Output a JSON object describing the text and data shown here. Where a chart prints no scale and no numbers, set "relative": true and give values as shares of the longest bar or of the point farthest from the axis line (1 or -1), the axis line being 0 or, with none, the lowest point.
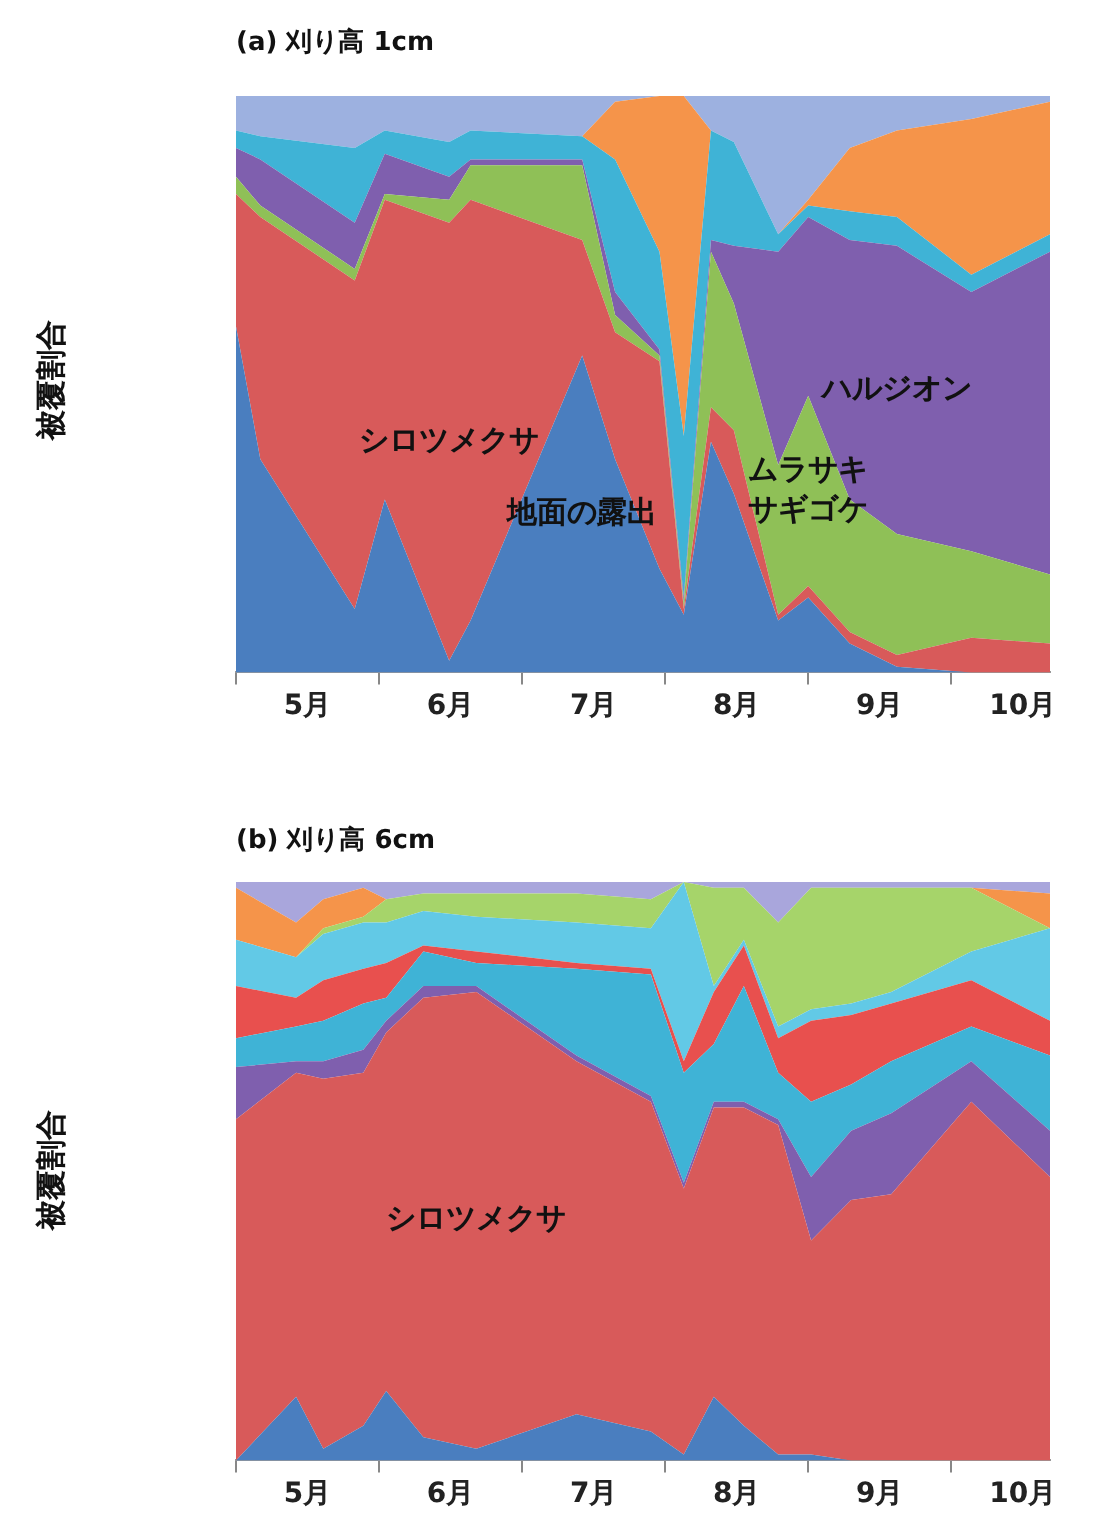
{
  "chart_data": [
    {
      "type": "area",
      "title": "(a) 刈り高 1cm",
      "ylabel": "被覆割合",
      "stacked": true,
      "relative": true,
      "x": [
        5.0,
        5.17,
        5.83,
        6.04,
        6.49,
        6.64,
        7.42,
        7.65,
        7.96,
        8.13,
        8.32,
        8.48,
        8.79,
        9.0,
        9.29,
        9.62,
        10.14,
        10.69
      ],
      "xlim": [
        5,
        10.69
      ],
      "xticks": [
        {
          "value": 5,
          "label": null
        },
        {
          "value": 5.5,
          "label": "5月"
        },
        {
          "value": 6,
          "label": null
        },
        {
          "value": 6.5,
          "label": "6月"
        },
        {
          "value": 7,
          "label": null
        },
        {
          "value": 7.5,
          "label": "7月"
        },
        {
          "value": 8,
          "label": null
        },
        {
          "value": 8.5,
          "label": "8月"
        },
        {
          "value": 9,
          "label": null
        },
        {
          "value": 9.5,
          "label": "9月"
        },
        {
          "value": 10,
          "label": null
        },
        {
          "value": 10.5,
          "label": "10月"
        }
      ],
      "series": [
        {
          "name": "地面の露出",
          "color": "#4a7ebf",
          "values": [
            0.6,
            0.37,
            0.11,
            0.3,
            0.02,
            0.09,
            0.55,
            0.37,
            0.18,
            0.1,
            0.4,
            0.31,
            0.09,
            0.13,
            0.05,
            0.01,
            0,
            0
          ]
        },
        {
          "name": "シロツメクサ",
          "color": "#d85a5a",
          "values": [
            0.23,
            0.42,
            0.57,
            0.52,
            0.76,
            0.73,
            0.2,
            0.22,
            0.36,
            0.01,
            0.06,
            0.11,
            0.01,
            0.02,
            0.02,
            0.02,
            0.06,
            0.05
          ]
        },
        {
          "name": "ムラサキサギゴケ",
          "color": "#8fc057",
          "values": [
            0.03,
            0.02,
            0.02,
            0.01,
            0.04,
            0.06,
            0.13,
            0.03,
            0.01,
            0.01,
            0.27,
            0.22,
            0.26,
            0.33,
            0.23,
            0.21,
            0.15,
            0.12
          ]
        },
        {
          "name": "ハルジオン",
          "color": "#7f5fae",
          "values": [
            0.05,
            0.08,
            0.08,
            0.07,
            0.04,
            0.01,
            0.01,
            0.04,
            0.01,
            0.01,
            0.02,
            0.1,
            0.37,
            0.31,
            0.45,
            0.5,
            0.45,
            0.56
          ]
        },
        {
          "color": "#3fb3d6",
          "values": [
            0.03,
            0.04,
            0.13,
            0.04,
            0.06,
            0.05,
            0.04,
            0.23,
            0.17,
            0.28,
            0.19,
            0.18,
            0.03,
            0.02,
            0.05,
            0.05,
            0.03,
            0.03
          ]
        },
        {
          "color": "#f5944a",
          "values": [
            0,
            0,
            0,
            0,
            0,
            0,
            0,
            0.1,
            0.27,
            0.59,
            0,
            0,
            0,
            0.01,
            0.11,
            0.15,
            0.27,
            0.23
          ]
        },
        {
          "color": "#9db1e0",
          "values": [
            0.06,
            0.07,
            0.09,
            0.06,
            0.08,
            0.06,
            0.07,
            0.01,
            0,
            0,
            0.06,
            0.08,
            0.24,
            0.18,
            0.09,
            0.06,
            0.04,
            0.01
          ]
        }
      ]
    },
    {
      "type": "area",
      "title": "(b) 刈り高 6cm",
      "ylabel": "被覆割合",
      "stacked": true,
      "relative": true,
      "x": [
        5.0,
        5.42,
        5.61,
        5.89,
        6.05,
        6.31,
        6.68,
        7.38,
        7.9,
        8.13,
        8.34,
        8.55,
        8.79,
        9.02,
        9.3,
        9.58,
        10.14,
        10.69
      ],
      "xlim": [
        5,
        10.69
      ],
      "xticks": [
        {
          "value": 5,
          "label": null
        },
        {
          "value": 5.5,
          "label": "5月"
        },
        {
          "value": 6,
          "label": null
        },
        {
          "value": 6.5,
          "label": "6月"
        },
        {
          "value": 7,
          "label": null
        },
        {
          "value": 7.5,
          "label": "7月"
        },
        {
          "value": 8,
          "label": null
        },
        {
          "value": 8.5,
          "label": "8月"
        },
        {
          "value": 9,
          "label": null
        },
        {
          "value": 9.5,
          "label": "9月"
        },
        {
          "value": 10,
          "label": null
        },
        {
          "value": 10.5,
          "label": "10月"
        }
      ],
      "series": [
        {
          "color": "#4a7ebf",
          "values": [
            0,
            0.11,
            0.02,
            0.06,
            0.12,
            0.04,
            0.02,
            0.08,
            0.05,
            0.01,
            0.11,
            0.06,
            0.01,
            0.01,
            0,
            0,
            0,
            0
          ]
        },
        {
          "name": "シロツメクサ",
          "color": "#d85a5a",
          "values": [
            0.59,
            0.56,
            0.64,
            0.61,
            0.62,
            0.76,
            0.79,
            0.61,
            0.57,
            0.46,
            0.5,
            0.55,
            0.57,
            0.37,
            0.45,
            0.46,
            0.62,
            0.49
          ]
        },
        {
          "color": "#7f5fae",
          "values": [
            0.09,
            0.02,
            0.03,
            0.04,
            0.02,
            0.02,
            0.01,
            0.01,
            0.01,
            0.01,
            0.01,
            0.01,
            0.01,
            0.11,
            0.12,
            0.14,
            0.07,
            0.08
          ]
        },
        {
          "color": "#3fb3d6",
          "values": [
            0.05,
            0.06,
            0.07,
            0.08,
            0.04,
            0.06,
            0.04,
            0.15,
            0.21,
            0.19,
            0.1,
            0.2,
            0.08,
            0.13,
            0.08,
            0.09,
            0.06,
            0.13
          ]
        },
        {
          "color": "#e8504e",
          "values": [
            0.09,
            0.05,
            0.07,
            0.06,
            0.06,
            0.01,
            0.02,
            0.01,
            0.01,
            0.02,
            0.09,
            0.07,
            0.06,
            0.14,
            0.12,
            0.1,
            0.08,
            0.06
          ]
        },
        {
          "color": "#62c9e6",
          "values": [
            0.08,
            0.07,
            0.08,
            0.08,
            0.07,
            0.06,
            0.06,
            0.07,
            0.07,
            0.31,
            0.01,
            0.01,
            0.02,
            0.02,
            0.02,
            0.02,
            0.05,
            0.16
          ]
        },
        {
          "color": "#a6d46a",
          "values": [
            0,
            0,
            0.01,
            0.01,
            0.04,
            0.03,
            0.04,
            0.05,
            0.05,
            0,
            0.17,
            0.09,
            0.18,
            0.21,
            0.2,
            0.18,
            0.11,
            0
          ]
        },
        {
          "color": "#f5944a",
          "values": [
            0.09,
            0.06,
            0.05,
            0.05,
            0,
            0,
            0,
            0,
            0,
            0,
            0,
            0,
            0,
            0,
            0,
            0,
            0,
            0.06
          ]
        },
        {
          "color": "#a9a6dc",
          "values": [
            0.01,
            0.07,
            0.03,
            0.01,
            0.03,
            0.02,
            0.02,
            0.02,
            0.03,
            0,
            0.01,
            0.01,
            0.07,
            0.01,
            0.01,
            0.01,
            0.01,
            0.02
          ]
        }
      ]
    }
  ]
}
